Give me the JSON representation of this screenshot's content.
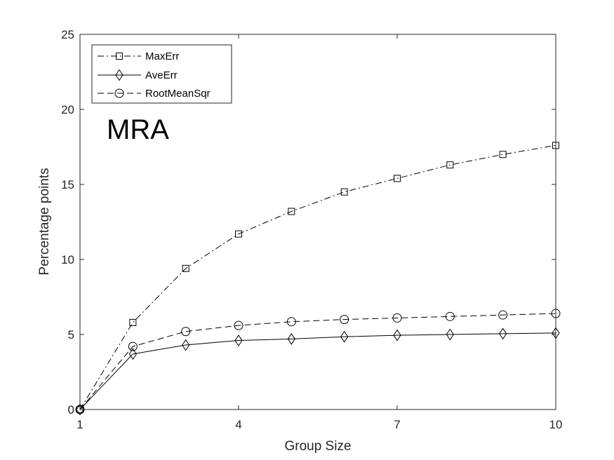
{
  "chart_data": {
    "type": "line",
    "xlabel": "Group Size",
    "ylabel": "Percentage points",
    "annotation": "MRA",
    "xlim": [
      1,
      10
    ],
    "ylim": [
      0,
      25
    ],
    "xticks": [
      1,
      4,
      7,
      10
    ],
    "yticks": [
      0,
      5,
      10,
      15,
      20,
      25
    ],
    "grid": false,
    "legend_position": "top-left",
    "x": [
      1,
      2,
      3,
      4,
      5,
      6,
      7,
      8,
      9,
      10
    ],
    "series": [
      {
        "name": "MaxErr",
        "marker": "square",
        "line_style": "dash-dot",
        "color": "#000000",
        "values": [
          0,
          5.8,
          9.4,
          11.7,
          13.2,
          14.5,
          15.4,
          16.3,
          17.0,
          17.6
        ]
      },
      {
        "name": "AveErr",
        "marker": "diamond",
        "line_style": "solid",
        "color": "#000000",
        "values": [
          0,
          3.7,
          4.3,
          4.6,
          4.7,
          4.85,
          4.95,
          5.0,
          5.05,
          5.1
        ]
      },
      {
        "name": "RootMeanSqr",
        "marker": "circle",
        "line_style": "dashed",
        "color": "#000000",
        "values": [
          0,
          4.2,
          5.2,
          5.6,
          5.85,
          6.0,
          6.1,
          6.2,
          6.3,
          6.4
        ]
      }
    ]
  }
}
